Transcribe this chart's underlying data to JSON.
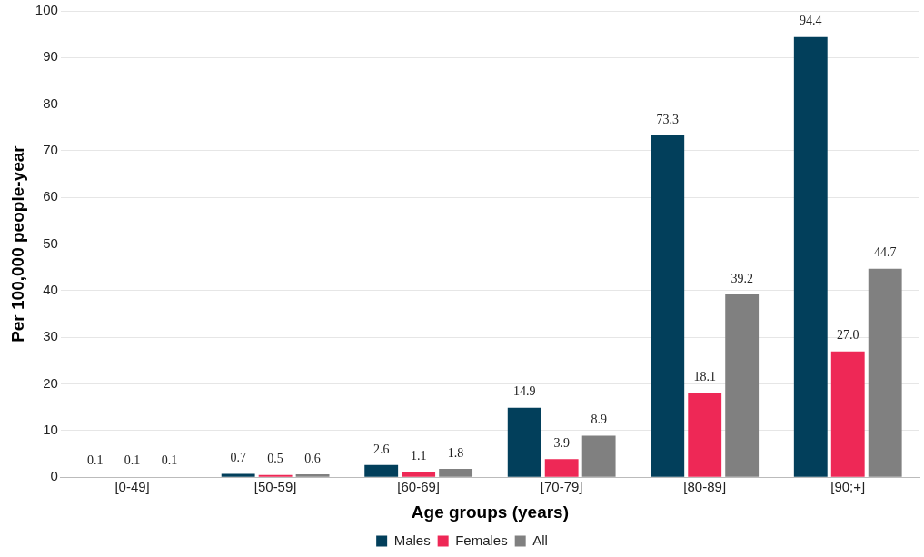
{
  "chart_data": {
    "type": "bar",
    "xlabel": "Age groups (years)",
    "ylabel": "Per 100,000 people-year",
    "categories": [
      "[0-49]",
      "[50-59]",
      "[60-69]",
      "[70-79]",
      "[80-89]",
      "[90;+]"
    ],
    "series": [
      {
        "name": "Males",
        "color": "#023f5b",
        "values": [
          0.1,
          0.7,
          2.6,
          14.9,
          73.3,
          94.4
        ],
        "value_labels": [
          "0.1",
          "0.7",
          "2.6",
          "14.9",
          "73.3",
          "94.4"
        ]
      },
      {
        "name": "Females",
        "color": "#ee2856",
        "values": [
          0.1,
          0.5,
          1.1,
          3.9,
          18.1,
          27.0
        ],
        "value_labels": [
          "0.1",
          "0.5",
          "1.1",
          "3.9",
          "18.1",
          "27.0"
        ]
      },
      {
        "name": "All",
        "color": "#808080",
        "values": [
          0.1,
          0.6,
          1.8,
          8.9,
          39.2,
          44.7
        ],
        "value_labels": [
          "0.1",
          "0.6",
          "1.8",
          "8.9",
          "39.2",
          "44.7"
        ]
      }
    ],
    "ylim": [
      0,
      100
    ],
    "yticks": [
      0,
      10,
      20,
      30,
      40,
      50,
      60,
      70,
      80,
      90,
      100
    ],
    "grid": "y",
    "legend": "bottom"
  }
}
